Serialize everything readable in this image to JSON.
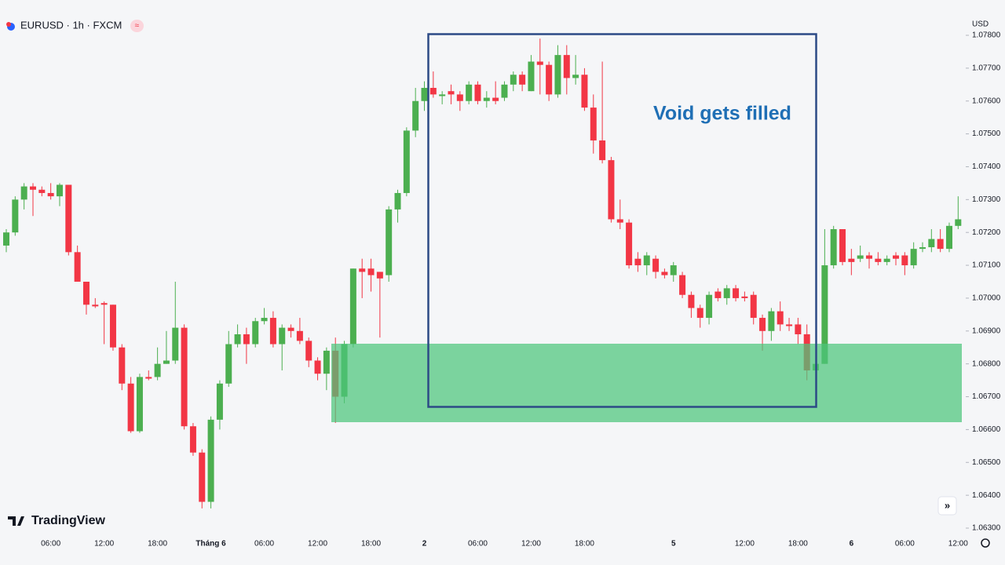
{
  "chart_data": {
    "type": "candlestick",
    "title": "EURUSD · 1h · FXCM",
    "currency": "USD",
    "brand": "TradingView",
    "annotation": "Void gets filled",
    "up_color": "#4caf50",
    "down_color": "#f23645",
    "categories": [
      null,
      null,
      null,
      null,
      null,
      "06:00",
      null,
      null,
      null,
      null,
      null,
      "12:00",
      null,
      null,
      null,
      null,
      null,
      "18:00",
      null,
      null,
      null,
      null,
      null,
      "Tháng 6",
      null,
      null,
      null,
      null,
      null,
      "06:00",
      null,
      null,
      null,
      null,
      null,
      "12:00",
      null,
      null,
      null,
      null,
      null,
      "18:00",
      null,
      null,
      null,
      null,
      null,
      "2",
      null,
      null,
      null,
      null,
      null,
      "06:00",
      null,
      null,
      null,
      null,
      null,
      "12:00",
      null,
      null,
      null,
      null,
      null,
      "18:00",
      null,
      null,
      null,
      null,
      null,
      null,
      null,
      null,
      null,
      "5",
      null,
      null,
      null,
      null,
      null,
      null,
      null,
      "12:00",
      null,
      null,
      null,
      null,
      null,
      "18:00",
      null,
      null,
      null,
      null,
      null,
      "6",
      null,
      null,
      null,
      null,
      null,
      "06:00",
      null,
      null,
      null,
      null,
      null,
      "12:00"
    ],
    "open": [
      1.0716,
      1.072,
      1.073,
      1.0734,
      1.0733,
      1.0732,
      1.0731,
      1.07345,
      1.0714,
      1.0705,
      1.0698,
      1.06985,
      1.0698,
      1.0685,
      1.0674,
      1.06595,
      1.0676,
      1.0676,
      1.068,
      1.0681,
      1.0691,
      1.0661,
      1.0653,
      1.0638,
      1.0663,
      1.0674,
      1.0686,
      1.0689,
      1.0686,
      1.0693,
      1.0694,
      1.0686,
      1.0691,
      1.069,
      1.0687,
      1.0681,
      1.0677,
      1.0684,
      1.067,
      1.0686,
      1.0709,
      1.0709,
      1.0708,
      1.0707,
      1.0727,
      1.0732,
      1.0751,
      1.076,
      1.0764,
      1.07615,
      1.0763,
      1.0762,
      1.076,
      1.0765,
      1.076,
      1.0761,
      1.0761,
      1.0765,
      1.0768,
      1.0763,
      1.0772,
      1.0771,
      1.0762,
      1.0774,
      1.0767,
      1.0768,
      1.0758,
      1.0748,
      1.0742,
      1.0724,
      1.0723,
      1.0712,
      1.071,
      1.0712,
      1.0708,
      1.0707,
      1.0707,
      1.0701,
      1.0697,
      1.0694,
      1.0702,
      1.07,
      1.0703,
      1.07005,
      1.0701,
      1.0694,
      1.069,
      1.0696,
      1.0692,
      1.0692,
      1.0689,
      1.0678,
      1.068,
      1.071,
      1.0721,
      1.0712,
      1.0712,
      1.0713,
      1.0712,
      1.0711,
      1.0713,
      1.0713,
      1.071,
      1.0715,
      1.07155,
      1.0718,
      1.0715,
      1.0722
    ],
    "high": [
      1.0721,
      1.0731,
      1.0735,
      1.0735,
      1.0734,
      1.0735,
      1.0735,
      1.07345,
      1.0716,
      1.0705,
      1.07,
      1.0699,
      1.0698,
      1.0686,
      1.0676,
      1.0677,
      1.0678,
      1.0685,
      1.069,
      1.0705,
      1.0692,
      1.0662,
      1.0654,
      1.0664,
      1.0675,
      1.069,
      1.0692,
      1.0691,
      1.0694,
      1.0697,
      1.0696,
      1.0692,
      1.0692,
      1.0694,
      1.0688,
      1.0682,
      1.0685,
      1.0688,
      1.0687,
      1.0709,
      1.0712,
      1.0712,
      1.0708,
      1.0728,
      1.0733,
      1.0752,
      1.0764,
      1.0766,
      1.0769,
      1.0763,
      1.0765,
      1.0763,
      1.0766,
      1.0766,
      1.0763,
      1.0766,
      1.0766,
      1.0769,
      1.0769,
      1.0774,
      1.0779,
      1.0772,
      1.0777,
      1.0777,
      1.0774,
      1.077,
      1.0762,
      1.0772,
      1.0743,
      1.073,
      1.0724,
      1.0714,
      1.0714,
      1.0713,
      1.0709,
      1.0711,
      1.0708,
      1.0702,
      1.0698,
      1.0702,
      1.0703,
      1.0704,
      1.0704,
      1.0702,
      1.0702,
      1.0695,
      1.0697,
      1.0699,
      1.0694,
      1.0694,
      1.0692,
      1.069,
      1.0721,
      1.0722,
      1.0721,
      1.0715,
      1.0716,
      1.0714,
      1.0714,
      1.0713,
      1.0714,
      1.0714,
      1.0717,
      1.0717,
      1.0721,
      1.0721,
      1.0723,
      1.0731
    ],
    "low": [
      1.0714,
      1.0719,
      1.0727,
      1.0725,
      1.0731,
      1.073,
      1.0728,
      1.0713,
      1.0705,
      1.0695,
      1.0697,
      1.0686,
      1.0684,
      1.0672,
      1.0659,
      1.0659,
      1.0675,
      1.0675,
      1.068,
      1.068,
      1.066,
      1.0652,
      1.0636,
      1.0636,
      1.066,
      1.0673,
      1.0685,
      1.068,
      1.0685,
      1.0692,
      1.0685,
      1.0678,
      1.0688,
      1.0686,
      1.0679,
      1.0675,
      1.0672,
      1.0662,
      1.0668,
      1.0685,
      1.07,
      1.0702,
      1.0688,
      1.0705,
      1.0723,
      1.0731,
      1.0749,
      1.0757,
      1.0761,
      1.0759,
      1.0759,
      1.0757,
      1.0759,
      1.0759,
      1.0758,
      1.0759,
      1.076,
      1.0763,
      1.0763,
      1.0763,
      1.0762,
      1.076,
      1.0761,
      1.0762,
      1.0765,
      1.0757,
      1.0744,
      1.0741,
      1.0723,
      1.0721,
      1.0709,
      1.0708,
      1.0707,
      1.0706,
      1.0706,
      1.0705,
      1.07,
      1.0694,
      1.0691,
      1.0692,
      1.0699,
      1.0698,
      1.0699,
      1.0699,
      1.0692,
      1.0684,
      1.0687,
      1.069,
      1.069,
      1.0686,
      1.0675,
      1.0677,
      1.068,
      1.0709,
      1.071,
      1.0707,
      1.0711,
      1.0709,
      1.071,
      1.071,
      1.071,
      1.0707,
      1.0709,
      1.0714,
      1.0714,
      1.0714,
      1.0714,
      1.0721
    ],
    "close": [
      1.072,
      1.073,
      1.0734,
      1.0733,
      1.0732,
      1.0731,
      1.07345,
      1.0714,
      1.0705,
      1.0698,
      1.06975,
      1.0698,
      1.0685,
      1.0674,
      1.06595,
      1.0676,
      1.06755,
      1.068,
      1.0681,
      1.0691,
      1.0661,
      1.0653,
      1.0638,
      1.0663,
      1.0674,
      1.0686,
      1.0689,
      1.0686,
      1.0693,
      1.0694,
      1.0686,
      1.0691,
      1.069,
      1.0687,
      1.0681,
      1.0677,
      1.0684,
      1.067,
      1.0686,
      1.0709,
      1.0708,
      1.0707,
      1.0706,
      1.0727,
      1.0732,
      1.0751,
      1.076,
      1.0764,
      1.0762,
      1.0762,
      1.0762,
      1.076,
      1.0765,
      1.076,
      1.0761,
      1.076,
      1.0765,
      1.0768,
      1.0765,
      1.0772,
      1.0771,
      1.0762,
      1.0774,
      1.0767,
      1.0768,
      1.0758,
      1.0748,
      1.0742,
      1.0724,
      1.0723,
      1.071,
      1.071,
      1.0713,
      1.0708,
      1.0707,
      1.071,
      1.0701,
      1.0697,
      1.0694,
      1.0701,
      1.07,
      1.0703,
      1.07,
      1.07,
      1.0694,
      1.069,
      1.0696,
      1.0692,
      1.06915,
      1.0689,
      1.0678,
      1.068,
      1.071,
      1.0721,
      1.0711,
      1.0711,
      1.0713,
      1.0712,
      1.0711,
      1.0712,
      1.0712,
      1.071,
      1.0715,
      1.07155,
      1.0718,
      1.0715,
      1.0722,
      1.0724
    ],
    "ylim": [
      1.063,
      1.078
    ],
    "yticks": [
      {
        "value": 1.063,
        "label": "1.06300"
      },
      {
        "value": 1.064,
        "label": "1.06400"
      },
      {
        "value": 1.065,
        "label": "1.06500"
      },
      {
        "value": 1.066,
        "label": "1.06600"
      },
      {
        "value": 1.067,
        "label": "1.06700"
      },
      {
        "value": 1.068,
        "label": "1.06800"
      },
      {
        "value": 1.069,
        "label": "1.06900"
      },
      {
        "value": 1.07,
        "label": "1.07000"
      },
      {
        "value": 1.071,
        "label": "1.07100"
      },
      {
        "value": 1.072,
        "label": "1.07200"
      },
      {
        "value": 1.073,
        "label": "1.07300"
      },
      {
        "value": 1.074,
        "label": "1.07400"
      },
      {
        "value": 1.075,
        "label": "1.07500"
      },
      {
        "value": 1.076,
        "label": "1.07600"
      },
      {
        "value": 1.077,
        "label": "1.07700"
      },
      {
        "value": 1.078,
        "label": "1.07800"
      }
    ]
  }
}
